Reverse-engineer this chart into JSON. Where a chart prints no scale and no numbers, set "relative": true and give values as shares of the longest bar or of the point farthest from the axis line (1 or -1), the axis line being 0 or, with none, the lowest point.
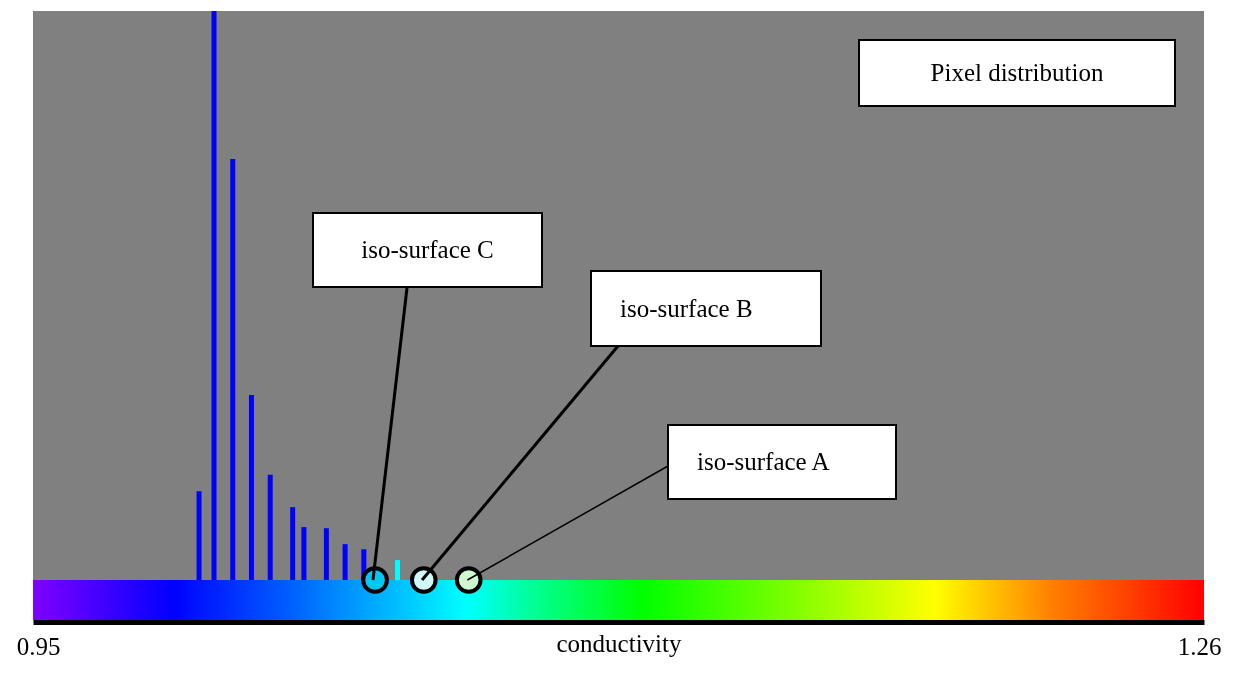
{
  "chart_data": {
    "type": "bar",
    "title": "Pixel distribution",
    "xlabel": "conductivity",
    "relative": true,
    "xlim": [
      0.95,
      1.26
    ],
    "xticks": [
      0.95,
      1.26
    ],
    "series": [
      {
        "x": [
          0.993,
          0.997,
          1.002,
          1.007,
          1.012,
          1.018,
          1.021,
          1.027,
          1.032,
          1.037,
          1.046
        ],
        "values": [
          0.156,
          1,
          0.74,
          0.325,
          0.185,
          0.128,
          0.093,
          0.091,
          0.063,
          0.054,
          0.035
        ],
        "colors": [
          "#0000ff",
          "#0000ff",
          "#0000ff",
          "#0000ff",
          "#0000ff",
          "#0000ff",
          "#0000ff",
          "#0000ff",
          "#0000ff",
          "#0000ff",
          "#00ffff"
        ]
      },
      {
        "type": "scatter",
        "x": [
          1.04,
          1.053,
          1.065
        ],
        "values": [
          0,
          0,
          0
        ],
        "colors": [
          "#00c8f0",
          "#d0f8f8",
          "#d0f8d0"
        ]
      }
    ],
    "annotations": [
      {
        "text": "iso-surface C",
        "x": 1.04,
        "y": 0
      },
      {
        "text": "iso-surface B",
        "x": 1.053,
        "y": 0
      },
      {
        "text": "iso-surface A",
        "x": 1.065,
        "y": 0
      }
    ]
  }
}
